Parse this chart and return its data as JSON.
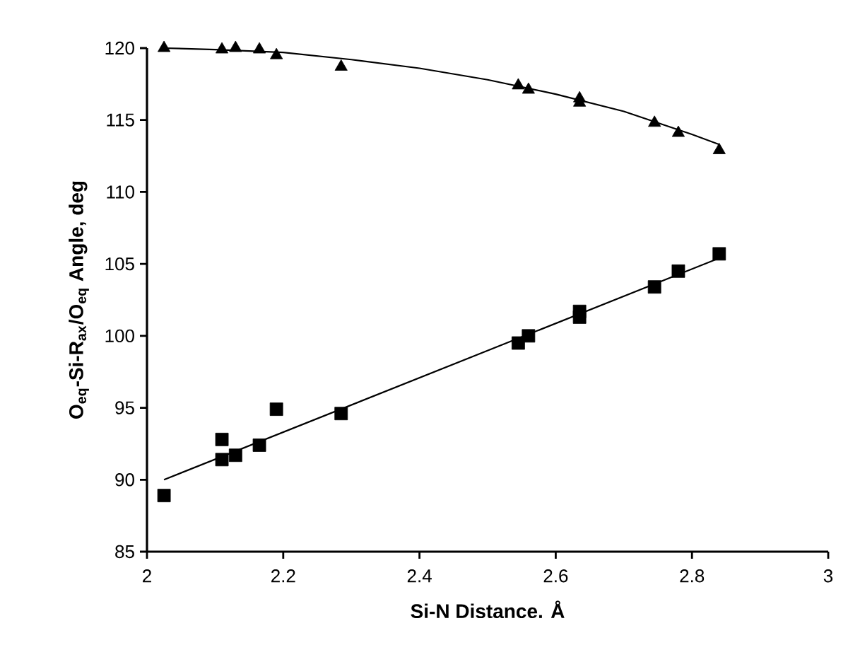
{
  "chart_data": {
    "type": "scatter",
    "xlabel": "Si-N Distance. Å",
    "ylabel": "O$_{eq}$-Si-R$_{ax}$/O$_{eq}$ Angle, deg",
    "xlim": [
      2,
      3
    ],
    "xticks": [
      2,
      2.2,
      2.4,
      2.6,
      2.8,
      3
    ],
    "ylim": [
      85,
      120
    ],
    "yticks": [
      85,
      90,
      95,
      100,
      105,
      110,
      115,
      120
    ],
    "grid": false,
    "series": [
      {
        "type": "scatter",
        "marker": "triangle",
        "color": "#000000",
        "x": [
          2.025,
          2.11,
          2.13,
          2.165,
          2.19,
          2.285,
          2.545,
          2.56,
          2.635,
          2.635,
          2.745,
          2.78,
          2.84
        ],
        "values": [
          120.0,
          119.9,
          120.0,
          119.9,
          119.5,
          118.7,
          117.4,
          117.1,
          116.5,
          116.2,
          114.8,
          114.1,
          112.9
        ]
      },
      {
        "type": "line",
        "marker": "none",
        "color": "#000000",
        "x": [
          2.025,
          2.1,
          2.2,
          2.3,
          2.4,
          2.5,
          2.6,
          2.7,
          2.8,
          2.84
        ],
        "values": [
          120.0,
          119.9,
          119.7,
          119.2,
          118.6,
          117.8,
          116.8,
          115.6,
          114.0,
          113.3
        ]
      },
      {
        "type": "scatter",
        "marker": "square",
        "color": "#000000",
        "x": [
          2.025,
          2.11,
          2.11,
          2.13,
          2.165,
          2.19,
          2.285,
          2.545,
          2.56,
          2.635,
          2.635,
          2.745,
          2.78,
          2.84
        ],
        "values": [
          88.9,
          92.8,
          91.4,
          91.7,
          92.4,
          94.9,
          94.6,
          99.5,
          100.0,
          101.3,
          101.7,
          103.4,
          104.5,
          105.7
        ]
      },
      {
        "type": "line",
        "marker": "none",
        "color": "#000000",
        "x": [
          2.025,
          2.84
        ],
        "values": [
          90.0,
          105.4
        ]
      }
    ]
  }
}
